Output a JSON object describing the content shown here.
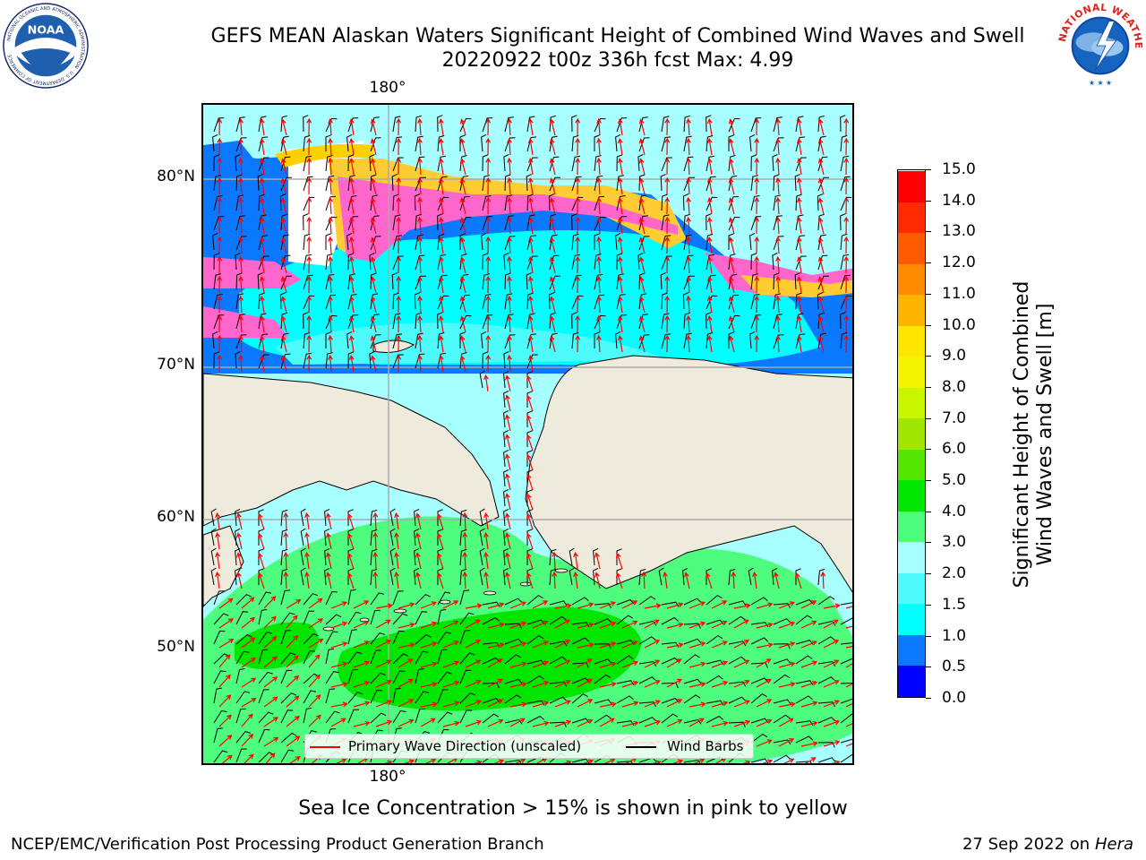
{
  "header": {
    "title_line1": "GEFS MEAN Alaskan Waters Significant Height of Combined Wind Waves and Swell",
    "title_line2": "20220922 t00z 336h fcst   Max: 4.99"
  },
  "logos": {
    "left": "noaa-logo",
    "right": "national-weather-service-logo",
    "left_text": "NOAA",
    "left_ring_text": "NATIONAL OCEANIC AND ATMOSPHERIC ADMINISTRATION · U.S. DEPARTMENT OF COMMERCE",
    "right_ring_text": "NATIONAL WEATHER SERVICE"
  },
  "map": {
    "lat_labels": [
      "80°N",
      "70°N",
      "60°N",
      "50°N"
    ],
    "lon_label_top": "180°",
    "lon_label_bottom": "180°",
    "land_color": "#efebdc",
    "legend": {
      "wave_direction": "Primary Wave Direction (unscaled)",
      "wind_barbs": "Wind Barbs",
      "wave_color": "#ff0000",
      "barb_color": "#000000"
    }
  },
  "colorbar": {
    "title_line1": "Significant Height of Combined",
    "title_line2": "Wind Waves and Swell [m]",
    "ticks": [
      "0.0",
      "0.5",
      "1.0",
      "1.5",
      "2.0",
      "3.0",
      "4.0",
      "5.0",
      "6.0",
      "7.0",
      "8.0",
      "9.0",
      "10.0",
      "11.0",
      "12.0",
      "13.0",
      "14.0",
      "15.0"
    ],
    "colors": [
      "#0000ff",
      "#0a78ff",
      "#00ffff",
      "#4efbfb",
      "#a8ffff",
      "#4ffd7e",
      "#00e600",
      "#55e600",
      "#a0e600",
      "#c8f500",
      "#f5f500",
      "#ffe600",
      "#ffb400",
      "#ff8c00",
      "#ff5a00",
      "#ff2a00",
      "#ff0000"
    ]
  },
  "footer": {
    "sea_ice_note": "Sea Ice Concentration > 15% is shown in pink to yellow",
    "producer": "NCEP/EMC/Verification Post Processing Product Generation Branch",
    "date": "27 Sep 2022 on",
    "machine": "Hera"
  }
}
